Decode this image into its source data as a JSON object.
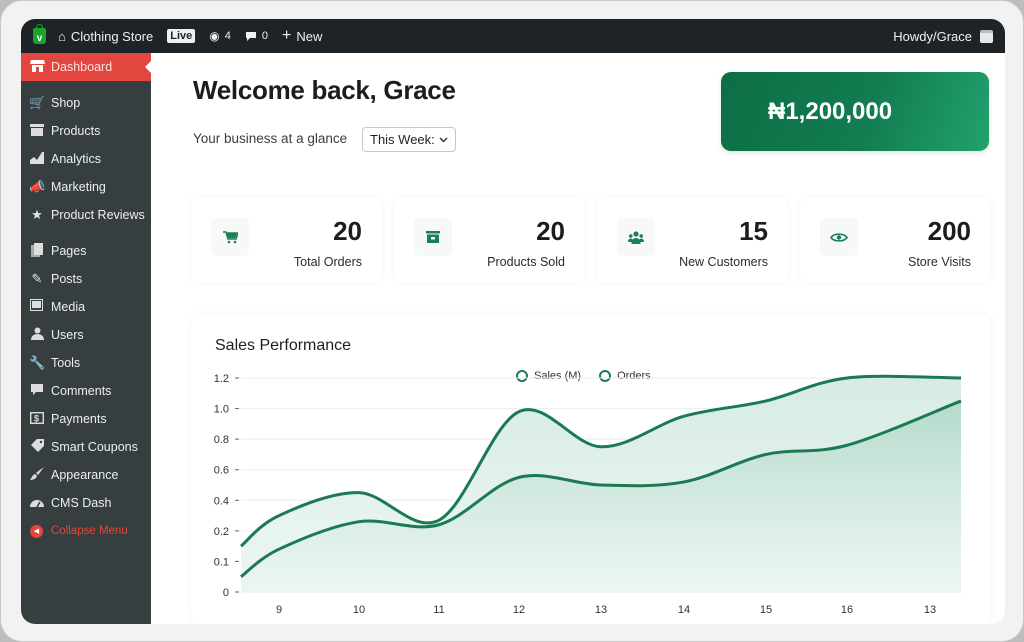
{
  "adminbar": {
    "site_name": "Clothing Store",
    "live_badge": "Live",
    "views_count": "4",
    "comments_count": "0",
    "new_label": "New",
    "greeting": "Howdy/Grace"
  },
  "sidebar": {
    "items": [
      {
        "label": "Dashboard",
        "icon": "store-icon",
        "active": true
      },
      {
        "label": "Shop",
        "icon": "cart-icon"
      },
      {
        "label": "Products",
        "icon": "box-icon"
      },
      {
        "label": "Analytics",
        "icon": "chart-icon"
      },
      {
        "label": "Marketing",
        "icon": "megaphone-icon"
      },
      {
        "label": "Product Reviews",
        "icon": "star-icon"
      },
      {
        "label": "Pages",
        "icon": "pages-icon"
      },
      {
        "label": "Posts",
        "icon": "pencil-icon"
      },
      {
        "label": "Media",
        "icon": "media-icon"
      },
      {
        "label": "Users",
        "icon": "user-icon"
      },
      {
        "label": "Tools",
        "icon": "wrench-icon"
      },
      {
        "label": "Comments",
        "icon": "comment-icon"
      },
      {
        "label": "Payments",
        "icon": "dollar-icon"
      },
      {
        "label": "Smart Coupons",
        "icon": "tag-icon"
      },
      {
        "label": "Appearance",
        "icon": "brush-icon"
      },
      {
        "label": "CMS Dash",
        "icon": "gauge-icon"
      },
      {
        "label": "Collapse Menu",
        "icon": "collapse-icon"
      }
    ]
  },
  "main": {
    "welcome": "Welcome back, Grace",
    "subtitle": "Your business at a glance",
    "period_select": "This Week:",
    "revenue": "₦1,200,000",
    "stats": [
      {
        "value": "20",
        "label": "Total Orders",
        "icon": "cart-icon"
      },
      {
        "value": "20",
        "label": "Products Sold",
        "icon": "archive-icon"
      },
      {
        "value": "15",
        "label": "New Customers",
        "icon": "users-icon"
      },
      {
        "value": "200",
        "label": "Store Visits",
        "icon": "eye-icon"
      }
    ],
    "chart_title": "Sales Performance",
    "legend": [
      "Sales (M)",
      "Orders"
    ]
  },
  "colors": {
    "accent_green": "#1a7a52",
    "sidebar_bg": "#373e3f",
    "active_red": "#e2463f",
    "adminbar_bg": "#1d2327"
  },
  "chart_data": {
    "type": "area",
    "title": "Sales Performance",
    "xlabel": "",
    "ylabel": "",
    "categories": [
      "9",
      "10",
      "11",
      "12",
      "13",
      "14",
      "15",
      "16",
      "13"
    ],
    "y_ticks": [
      "0",
      "0.1",
      "0.2",
      "0.4",
      "0.6",
      "0.8",
      "1.0",
      "1.2"
    ],
    "ylim": [
      0,
      1.2
    ],
    "grid": true,
    "legend_position": "top-center",
    "series": [
      {
        "name": "Sales (M)",
        "values": [
          0.3,
          0.45,
          0.27,
          0.98,
          0.75,
          0.95,
          1.05,
          1.2,
          1.2
        ]
      },
      {
        "name": "Orders",
        "values": [
          0.14,
          0.26,
          0.24,
          0.55,
          0.5,
          0.52,
          0.7,
          0.76,
          1.0
        ]
      }
    ]
  }
}
